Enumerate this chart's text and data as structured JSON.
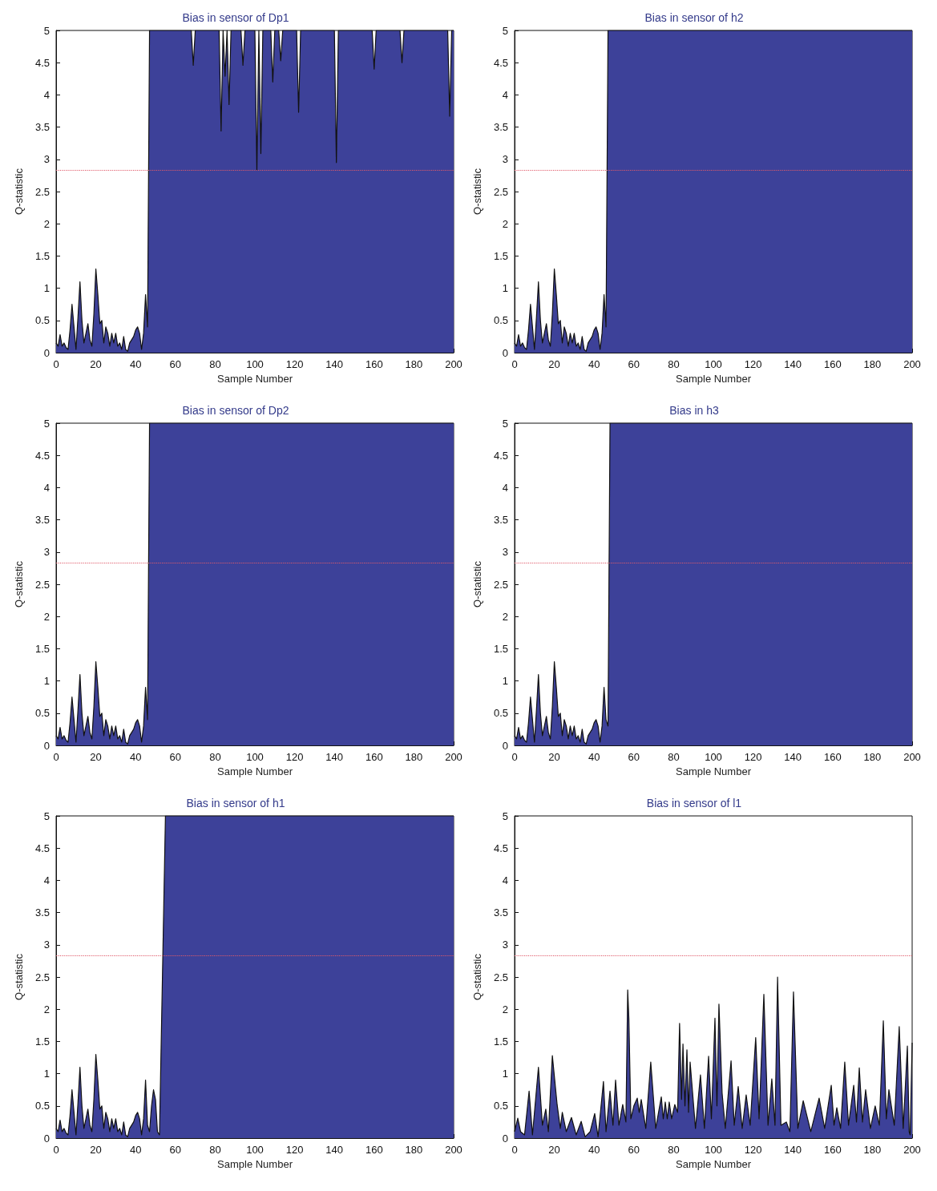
{
  "chart_data": [
    {
      "type": "area",
      "title": "Bias in sensor of Dp1",
      "xlabel": "Sample Number",
      "ylabel": "Q-statistic",
      "xlim": [
        0,
        200
      ],
      "xticks": [
        0,
        20,
        40,
        60,
        80,
        100,
        120,
        140,
        160,
        180,
        200
      ],
      "ylim": [
        0,
        5
      ],
      "yticks": [
        0,
        0.5,
        1,
        1.5,
        2,
        2.5,
        3,
        3.5,
        4,
        4.5,
        5
      ],
      "grid": false,
      "marker": "none",
      "ref_lines": [
        {
          "axis": "y",
          "value": 2.83,
          "color": "#e05a6a",
          "line_style": "dotted"
        }
      ],
      "series": [
        {
          "color": "#3d4199",
          "x": [
            0,
            1,
            2,
            3,
            4,
            5,
            6,
            7,
            8,
            9,
            10,
            11,
            12,
            13,
            14,
            15,
            16,
            17,
            18,
            19,
            20,
            21,
            22,
            23,
            24,
            25,
            26,
            27,
            28,
            29,
            30,
            31,
            32,
            33,
            34,
            35,
            36,
            37,
            38,
            39,
            40,
            41,
            42,
            43,
            44,
            45,
            46,
            47,
            68,
            69,
            70,
            82,
            83,
            84,
            85,
            86,
            87,
            88,
            93,
            94,
            95,
            100,
            101,
            102,
            103,
            104,
            108,
            109,
            110,
            112,
            113,
            114,
            121,
            122,
            123,
            140,
            141,
            142,
            159,
            160,
            161,
            173,
            174,
            175,
            197,
            198,
            199,
            200
          ],
          "values": [
            0.15,
            0.1,
            0.28,
            0.1,
            0.15,
            0.08,
            0.05,
            0.35,
            0.75,
            0.4,
            0.05,
            0.55,
            1.1,
            0.5,
            0.15,
            0.3,
            0.45,
            0.2,
            0.1,
            0.6,
            1.3,
            0.9,
            0.45,
            0.5,
            0.15,
            0.4,
            0.3,
            0.1,
            0.3,
            0.15,
            0.3,
            0.1,
            0.15,
            0.05,
            0.25,
            0.05,
            0.02,
            0.15,
            0.2,
            0.25,
            0.35,
            0.4,
            0.3,
            0.05,
            0.3,
            0.9,
            0.4,
            5,
            5,
            4.46,
            5,
            5,
            3.44,
            5,
            4.29,
            5,
            3.85,
            5,
            5,
            4.46,
            5,
            5,
            2.83,
            5,
            3.09,
            5,
            5,
            4.2,
            5,
            5,
            4.53,
            5,
            5,
            3.73,
            5,
            5,
            2.95,
            5,
            5,
            4.4,
            5,
            5,
            4.5,
            5,
            5,
            3.67,
            5,
            5
          ]
        }
      ]
    },
    {
      "type": "area",
      "title": "Bias in sensor of h2",
      "xlabel": "Sample Number",
      "ylabel": "Q-statistic",
      "xlim": [
        0,
        200
      ],
      "xticks": [
        0,
        20,
        40,
        60,
        80,
        100,
        120,
        140,
        160,
        180,
        200
      ],
      "ylim": [
        0,
        5
      ],
      "yticks": [
        0,
        0.5,
        1,
        1.5,
        2,
        2.5,
        3,
        3.5,
        4,
        4.5,
        5
      ],
      "grid": false,
      "marker": "none",
      "ref_lines": [
        {
          "axis": "y",
          "value": 2.83,
          "color": "#e05a6a",
          "line_style": "dotted"
        }
      ],
      "series": [
        {
          "color": "#3d4199",
          "x": [
            0,
            1,
            2,
            3,
            4,
            5,
            6,
            7,
            8,
            9,
            10,
            11,
            12,
            13,
            14,
            15,
            16,
            17,
            18,
            19,
            20,
            21,
            22,
            23,
            24,
            25,
            26,
            27,
            28,
            29,
            30,
            31,
            32,
            33,
            34,
            35,
            36,
            37,
            38,
            39,
            40,
            41,
            42,
            43,
            44,
            45,
            46,
            47,
            200
          ],
          "values": [
            0.15,
            0.1,
            0.28,
            0.1,
            0.15,
            0.08,
            0.05,
            0.35,
            0.75,
            0.4,
            0.05,
            0.55,
            1.1,
            0.5,
            0.15,
            0.3,
            0.45,
            0.2,
            0.1,
            0.6,
            1.3,
            0.9,
            0.45,
            0.5,
            0.15,
            0.4,
            0.3,
            0.1,
            0.3,
            0.15,
            0.3,
            0.1,
            0.15,
            0.05,
            0.25,
            0.05,
            0.02,
            0.15,
            0.2,
            0.25,
            0.35,
            0.4,
            0.3,
            0.05,
            0.3,
            0.9,
            0.4,
            5,
            5
          ]
        }
      ]
    },
    {
      "type": "area",
      "title": "Bias in sensor of Dp2",
      "xlabel": "Sample Number",
      "ylabel": "Q-statistic",
      "xlim": [
        0,
        200
      ],
      "xticks": [
        0,
        20,
        40,
        60,
        80,
        100,
        120,
        140,
        160,
        180,
        200
      ],
      "ylim": [
        0,
        5
      ],
      "yticks": [
        0,
        0.5,
        1,
        1.5,
        2,
        2.5,
        3,
        3.5,
        4,
        4.5,
        5
      ],
      "grid": false,
      "marker": "none",
      "ref_lines": [
        {
          "axis": "y",
          "value": 2.83,
          "color": "#e05a6a",
          "line_style": "dotted"
        }
      ],
      "series": [
        {
          "color": "#3d4199",
          "x": [
            0,
            1,
            2,
            3,
            4,
            5,
            6,
            7,
            8,
            9,
            10,
            11,
            12,
            13,
            14,
            15,
            16,
            17,
            18,
            19,
            20,
            21,
            22,
            23,
            24,
            25,
            26,
            27,
            28,
            29,
            30,
            31,
            32,
            33,
            34,
            35,
            36,
            37,
            38,
            39,
            40,
            41,
            42,
            43,
            44,
            45,
            46,
            47,
            200
          ],
          "values": [
            0.15,
            0.1,
            0.28,
            0.1,
            0.15,
            0.08,
            0.05,
            0.35,
            0.75,
            0.4,
            0.05,
            0.55,
            1.1,
            0.5,
            0.15,
            0.3,
            0.45,
            0.2,
            0.1,
            0.6,
            1.3,
            0.9,
            0.45,
            0.5,
            0.15,
            0.4,
            0.3,
            0.1,
            0.3,
            0.15,
            0.3,
            0.1,
            0.15,
            0.05,
            0.25,
            0.05,
            0.02,
            0.15,
            0.2,
            0.25,
            0.35,
            0.4,
            0.3,
            0.05,
            0.3,
            0.9,
            0.4,
            5,
            5
          ]
        }
      ]
    },
    {
      "type": "area",
      "title": "Bias in h3",
      "xlabel": "Sample Number",
      "ylabel": "Q-statistic",
      "xlim": [
        0,
        200
      ],
      "xticks": [
        0,
        20,
        40,
        60,
        80,
        100,
        120,
        140,
        160,
        180,
        200
      ],
      "ylim": [
        0,
        5
      ],
      "yticks": [
        0,
        0.5,
        1,
        1.5,
        2,
        2.5,
        3,
        3.5,
        4,
        4.5,
        5
      ],
      "grid": false,
      "marker": "none",
      "ref_lines": [
        {
          "axis": "y",
          "value": 2.83,
          "color": "#e05a6a",
          "line_style": "dotted"
        }
      ],
      "series": [
        {
          "color": "#3d4199",
          "x": [
            0,
            1,
            2,
            3,
            4,
            5,
            6,
            7,
            8,
            9,
            10,
            11,
            12,
            13,
            14,
            15,
            16,
            17,
            18,
            19,
            20,
            21,
            22,
            23,
            24,
            25,
            26,
            27,
            28,
            29,
            30,
            31,
            32,
            33,
            34,
            35,
            36,
            37,
            38,
            39,
            40,
            41,
            42,
            43,
            44,
            45,
            46,
            47,
            48,
            200
          ],
          "values": [
            0.15,
            0.1,
            0.28,
            0.1,
            0.15,
            0.08,
            0.05,
            0.35,
            0.75,
            0.4,
            0.05,
            0.55,
            1.1,
            0.5,
            0.15,
            0.3,
            0.45,
            0.2,
            0.1,
            0.6,
            1.3,
            0.9,
            0.45,
            0.5,
            0.15,
            0.4,
            0.3,
            0.1,
            0.3,
            0.15,
            0.3,
            0.1,
            0.15,
            0.05,
            0.25,
            0.05,
            0.02,
            0.15,
            0.2,
            0.25,
            0.35,
            0.4,
            0.3,
            0.05,
            0.3,
            0.9,
            0.4,
            0.3,
            5,
            5
          ]
        }
      ]
    },
    {
      "type": "area",
      "title": "Bias in sensor of h1",
      "xlabel": "Sample Number",
      "ylabel": "Q-statistic",
      "xlim": [
        0,
        200
      ],
      "xticks": [
        0,
        20,
        40,
        60,
        80,
        100,
        120,
        140,
        160,
        180,
        200
      ],
      "ylim": [
        0,
        5
      ],
      "yticks": [
        0,
        0.5,
        1,
        1.5,
        2,
        2.5,
        3,
        3.5,
        4,
        4.5,
        5
      ],
      "grid": false,
      "marker": "none",
      "ref_lines": [
        {
          "axis": "y",
          "value": 2.83,
          "color": "#e05a6a",
          "line_style": "dotted"
        }
      ],
      "series": [
        {
          "color": "#3d4199",
          "x": [
            0,
            1,
            2,
            3,
            4,
            5,
            6,
            7,
            8,
            9,
            10,
            11,
            12,
            13,
            14,
            15,
            16,
            17,
            18,
            19,
            20,
            21,
            22,
            23,
            24,
            25,
            26,
            27,
            28,
            29,
            30,
            31,
            32,
            33,
            34,
            35,
            36,
            37,
            38,
            39,
            40,
            41,
            42,
            43,
            44,
            45,
            46,
            47,
            48,
            49,
            50,
            51,
            52,
            55,
            200
          ],
          "values": [
            0.15,
            0.1,
            0.28,
            0.1,
            0.15,
            0.08,
            0.05,
            0.35,
            0.75,
            0.4,
            0.05,
            0.55,
            1.1,
            0.5,
            0.15,
            0.3,
            0.45,
            0.2,
            0.1,
            0.6,
            1.3,
            0.9,
            0.45,
            0.5,
            0.15,
            0.4,
            0.3,
            0.1,
            0.3,
            0.15,
            0.3,
            0.1,
            0.15,
            0.05,
            0.25,
            0.05,
            0.02,
            0.15,
            0.2,
            0.25,
            0.35,
            0.4,
            0.3,
            0.05,
            0.3,
            0.9,
            0.2,
            0.1,
            0.5,
            0.75,
            0.6,
            0.1,
            0.05,
            5,
            5
          ]
        }
      ]
    },
    {
      "type": "area",
      "title": "Bias in sensor of l1",
      "xlabel": "Sample Number",
      "ylabel": "Q-statistic",
      "xlim": [
        0,
        200
      ],
      "xticks": [
        0,
        20,
        40,
        60,
        80,
        100,
        120,
        140,
        160,
        180,
        200
      ],
      "ylim": [
        0,
        5
      ],
      "yticks": [
        0,
        0.5,
        1,
        1.5,
        2,
        2.5,
        3,
        3.5,
        4,
        4.5,
        5
      ],
      "grid": false,
      "marker": "none",
      "ref_lines": [
        {
          "axis": "y",
          "value": 2.83,
          "color": "#e05a6a",
          "line_style": "dotted"
        }
      ],
      "series": [
        {
          "color": "#3d4199",
          "x": [
            0,
            1.6,
            3,
            5,
            7.3,
            9,
            12,
            14,
            15.7,
            17,
            19,
            21.4,
            23,
            24,
            26,
            28.6,
            31,
            33.5,
            35.5,
            38,
            40.3,
            42,
            44.7,
            46,
            48,
            49.5,
            50.8,
            52.5,
            54.4,
            56,
            56.9,
            57.5,
            58.5,
            60,
            61.7,
            62.7,
            63.7,
            66,
            68.5,
            71,
            73.8,
            74.8,
            75.8,
            76.8,
            77.8,
            79,
            80.6,
            82,
            83,
            84,
            84.7,
            85.7,
            86.7,
            87.5,
            88.3,
            91,
            93.5,
            95.5,
            97.6,
            99,
            100.8,
            101.8,
            102.8,
            104.4,
            106,
            108.9,
            110.5,
            112.5,
            114.5,
            116.5,
            118.5,
            121.3,
            123,
            125.4,
            127.5,
            129.4,
            131,
            132.3,
            134,
            136.7,
            138.5,
            140.3,
            142.5,
            145.2,
            149,
            153.2,
            156,
            159.3,
            160.7,
            162.1,
            164,
            166.1,
            168,
            170.6,
            172,
            173.4,
            175,
            176.6,
            179,
            181.4,
            183.5,
            185.5,
            187,
            188.3,
            191,
            193.5,
            195.5,
            197.6,
            198.5,
            199,
            200
          ],
          "values": [
            0.1,
            0.31,
            0.1,
            0.05,
            0.73,
            0.05,
            1.1,
            0.2,
            0.45,
            0.1,
            1.28,
            0.52,
            0.15,
            0.4,
            0.1,
            0.32,
            0.05,
            0.26,
            0.02,
            0.1,
            0.38,
            0.02,
            0.88,
            0.1,
            0.73,
            0.2,
            0.9,
            0.2,
            0.52,
            0.25,
            2.3,
            1.85,
            0.3,
            0.5,
            0.62,
            0.4,
            0.6,
            0.15,
            1.18,
            0.15,
            0.64,
            0.3,
            0.56,
            0.3,
            0.56,
            0.3,
            0.52,
            0.4,
            1.78,
            0.6,
            1.46,
            0.5,
            1.37,
            0.4,
            1.18,
            0.15,
            0.98,
            0.15,
            1.27,
            0.3,
            1.86,
            0.5,
            2.08,
            0.7,
            0.15,
            1.2,
            0.2,
            0.8,
            0.15,
            0.67,
            0.2,
            1.56,
            0.3,
            2.23,
            0.2,
            0.92,
            0.2,
            2.5,
            0.2,
            0.25,
            0.1,
            2.27,
            0.15,
            0.58,
            0.1,
            0.62,
            0.15,
            0.82,
            0.2,
            0.47,
            0.15,
            1.18,
            0.2,
            0.82,
            0.25,
            1.09,
            0.25,
            0.75,
            0.15,
            0.5,
            0.2,
            1.82,
            0.3,
            0.75,
            0.2,
            1.73,
            0.15,
            1.43,
            0.1,
            0.05,
            1.48
          ]
        }
      ]
    }
  ]
}
